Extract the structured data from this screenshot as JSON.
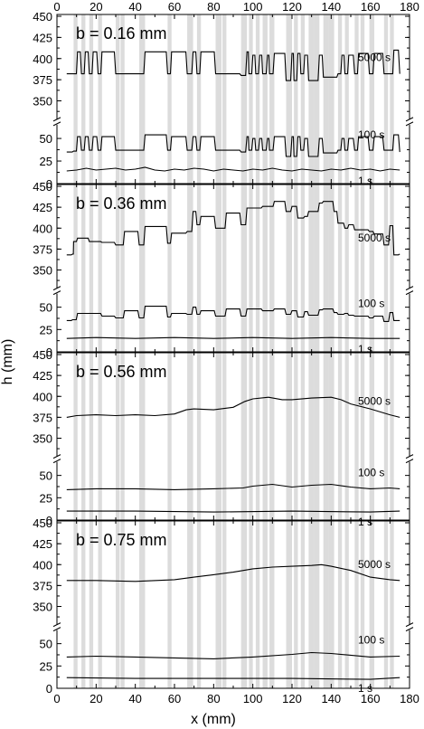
{
  "chart_data": {
    "type": "line",
    "xlabel": "x (mm)",
    "ylabel": "h (mm)",
    "xlim": [
      0,
      180
    ],
    "x_ticks": [
      0,
      20,
      40,
      60,
      80,
      100,
      120,
      140,
      160,
      180
    ],
    "y_ticks_upper": [
      350,
      375,
      400,
      425,
      450
    ],
    "y_ticks_lower": [
      0,
      25,
      50
    ],
    "y_axis_break": "between 50 and 350 (visual gap)",
    "shaded_bands": [
      [
        8.5,
        10.5
      ],
      [
        12.5,
        14.5
      ],
      [
        16.5,
        18.5
      ],
      [
        21,
        23
      ],
      [
        30,
        32
      ],
      [
        32.5,
        34.5
      ],
      [
        42,
        45
      ],
      [
        56.5,
        58.5
      ],
      [
        66.5,
        69.5
      ],
      [
        71.5,
        73.5
      ],
      [
        81,
        84
      ],
      [
        84.5,
        86.5
      ],
      [
        94,
        97
      ],
      [
        98,
        100
      ],
      [
        101.5,
        103.5
      ],
      [
        105,
        107.5
      ],
      [
        108.5,
        111
      ],
      [
        117,
        120
      ],
      [
        121,
        123
      ],
      [
        124.5,
        126.5
      ],
      [
        128.5,
        131.5
      ],
      [
        131.5,
        134
      ],
      [
        136,
        138.5
      ],
      [
        138.5,
        141.5
      ],
      [
        143.5,
        145.5
      ],
      [
        147,
        149
      ],
      [
        152,
        154
      ],
      [
        155,
        157
      ],
      [
        159.5,
        162
      ],
      [
        167,
        169
      ],
      [
        170,
        172
      ]
    ],
    "panels": [
      {
        "label": "b = 0.16 mm",
        "series": [
          {
            "name": "5000 s",
            "x": [
              5,
              8.5,
              10.5,
              12.5,
              14.5,
              16.5,
              18.5,
              21,
              23,
              30,
              34.5,
              42,
              45,
              56.5,
              58.5,
              66.5,
              69.5,
              71.5,
              73.5,
              81,
              86.5,
              94,
              97,
              98,
              100,
              101.5,
              103.5,
              105,
              107.5,
              108.5,
              111,
              117,
              120,
              121,
              123,
              124.5,
              126.5,
              128.5,
              134,
              136,
              141.5,
              143.5,
              145.5,
              147,
              149,
              152,
              154,
              159.5,
              162,
              167,
              169,
              170,
              172,
              175
            ],
            "y": [
              382,
              382,
              408,
              382,
              408,
              382,
              408,
              382,
              408,
              382,
              382,
              382,
              408,
              382,
              408,
              382,
              408,
              382,
              408,
              382,
              382,
              380,
              408,
              382,
              404,
              382,
              404,
              382,
              404,
              382,
              406,
              374,
              406,
              374,
              406,
              382,
              404,
              374,
              404,
              378,
              378,
              382,
              404,
              382,
              404,
              382,
              406,
              382,
              406,
              382,
              382,
              382,
              410,
              382
            ]
          },
          {
            "name": "100 s",
            "x": [
              5,
              8.5,
              10.5,
              12.5,
              14.5,
              16.5,
              18.5,
              21,
              23,
              30,
              34.5,
              42,
              45,
              56.5,
              58.5,
              66.5,
              69.5,
              71.5,
              73.5,
              81,
              86.5,
              94,
              97,
              98,
              100,
              101.5,
              103.5,
              105,
              107.5,
              108.5,
              111,
              117,
              120,
              121,
              123,
              124.5,
              126.5,
              128.5,
              134,
              136,
              141.5,
              143.5,
              145.5,
              147,
              149,
              152,
              154,
              159.5,
              162,
              167,
              169,
              170,
              172,
              175
            ],
            "y": [
              35,
              36,
              52,
              37,
              52,
              37,
              52,
              37,
              52,
              37,
              37,
              37,
              54,
              37,
              52,
              37,
              52,
              37,
              52,
              37,
              37,
              35,
              52,
              37,
              50,
              37,
              50,
              37,
              50,
              37,
              52,
              30,
              52,
              30,
              52,
              37,
              50,
              30,
              50,
              34,
              34,
              37,
              50,
              37,
              50,
              37,
              52,
              37,
              52,
              37,
              37,
              37,
              54,
              35
            ]
          },
          {
            "name": "1 s",
            "x": [
              5,
              10,
              15,
              20,
              25,
              30,
              35,
              40,
              45,
              50,
              55,
              60,
              65,
              70,
              75,
              80,
              85,
              90,
              95,
              100,
              105,
              110,
              115,
              120,
              125,
              130,
              135,
              140,
              145,
              150,
              155,
              160,
              165,
              170,
              175
            ],
            "y": [
              14,
              15,
              17,
              15,
              16,
              17,
              15,
              16,
              18,
              15,
              14,
              16,
              15,
              17,
              16,
              14,
              16,
              15,
              14,
              16,
              15,
              17,
              15,
              14,
              16,
              15,
              14,
              16,
              15,
              17,
              15,
              16,
              14,
              16,
              15
            ]
          }
        ]
      },
      {
        "label": "b = 0.36 mm",
        "series": [
          {
            "name": "5000 s",
            "x": [
              5,
              8,
              8.5,
              10.5,
              14.5,
              16.5,
              23,
              30,
              34.5,
              42,
              45,
              56.5,
              58.5,
              66.5,
              69.5,
              71.5,
              73.5,
              81,
              86.5,
              94,
              97,
              100,
              105,
              111,
              117,
              120,
              123,
              126.5,
              128.5,
              134,
              136,
              141.5,
              143.5,
              147,
              149,
              152,
              154,
              159.5,
              162,
              167,
              170,
              172,
              175
            ],
            "y": [
              368,
              369,
              384,
              388,
              388,
              384,
              383,
              380,
              396,
              380,
              402,
              382,
              394,
              396,
              420,
              404,
              414,
              400,
              418,
              404,
              424,
              424,
              426,
              432,
              420,
              426,
              412,
              414,
              420,
              430,
              432,
              420,
              406,
              400,
              404,
              398,
              398,
              396,
              393,
              380,
              403,
              368,
              369
            ]
          },
          {
            "name": "100 s",
            "x": [
              5,
              8,
              10.5,
              16.5,
              23,
              30,
              34.5,
              42,
              45,
              56.5,
              58.5,
              66.5,
              69.5,
              71.5,
              73.5,
              81,
              86.5,
              94,
              97,
              105,
              111,
              117,
              120,
              123,
              126.5,
              128.5,
              134,
              136,
              141.5,
              143.5,
              147,
              149,
              152,
              154,
              159.5,
              162,
              167,
              170,
              172,
              175
            ],
            "y": [
              35,
              36,
              43,
              43,
              40,
              38,
              46,
              38,
              51,
              39,
              43,
              42,
              50,
              42,
              46,
              40,
              48,
              40,
              48,
              46,
              48,
              42,
              46,
              39,
              45,
              41,
              47,
              48,
              44,
              42,
              43,
              41,
              40,
              40,
              38,
              40,
              34,
              44,
              35,
              35
            ]
          },
          {
            "name": "1 s",
            "x": [
              5,
              20,
              40,
              60,
              80,
              100,
              120,
              140,
              160,
              175
            ],
            "y": [
              15,
              16,
              15,
              16,
              15,
              16,
              15,
              16,
              15,
              15
            ]
          }
        ]
      },
      {
        "label": "b = 0.56 mm",
        "series": [
          {
            "name": "5000 s",
            "x": [
              5,
              10,
              20,
              30,
              40,
              50,
              60,
              66,
              70,
              80,
              90,
              96,
              100,
              108,
              115,
              120,
              130,
              140,
              145,
              150,
              160,
              170,
              175
            ],
            "y": [
              375,
              377,
              378,
              377,
              378,
              377,
              379,
              384,
              385,
              384,
              387,
              394,
              397,
              399,
              396,
              396,
              398,
              399,
              396,
              391,
              385,
              378,
              375
            ]
          },
          {
            "name": "100 s",
            "x": [
              5,
              20,
              40,
              60,
              80,
              95,
              100,
              110,
              120,
              130,
              140,
              150,
              160,
              170,
              175
            ],
            "y": [
              34,
              35,
              35,
              34,
              35,
              36,
              38,
              40,
              37,
              39,
              40,
              37,
              35,
              36,
              35
            ]
          },
          {
            "name": "1 s",
            "x": [
              5,
              40,
              80,
              120,
              160,
              175
            ],
            "y": [
              10,
              10,
              9,
              10,
              9,
              10
            ]
          }
        ]
      },
      {
        "label": "b = 0.75 mm",
        "series": [
          {
            "name": "5000 s",
            "x": [
              5,
              20,
              40,
              60,
              70,
              80,
              90,
              100,
              110,
              120,
              130,
              135,
              140,
              150,
              160,
              170,
              175
            ],
            "y": [
              381,
              381,
              380,
              382,
              385,
              388,
              391,
              395,
              397,
              398,
              399,
              400,
              398,
              393,
              385,
              382,
              381
            ]
          },
          {
            "name": "100 s",
            "x": [
              5,
              20,
              40,
              60,
              80,
              100,
              120,
              130,
              140,
              160,
              175
            ],
            "y": [
              35,
              36,
              35,
              34,
              33,
              35,
              38,
              40,
              39,
              35,
              36
            ]
          },
          {
            "name": "1 s",
            "x": [
              5,
              40,
              80,
              120,
              160,
              175
            ],
            "y": [
              12,
              11,
              11,
              11,
              10,
              12
            ]
          }
        ]
      }
    ]
  }
}
